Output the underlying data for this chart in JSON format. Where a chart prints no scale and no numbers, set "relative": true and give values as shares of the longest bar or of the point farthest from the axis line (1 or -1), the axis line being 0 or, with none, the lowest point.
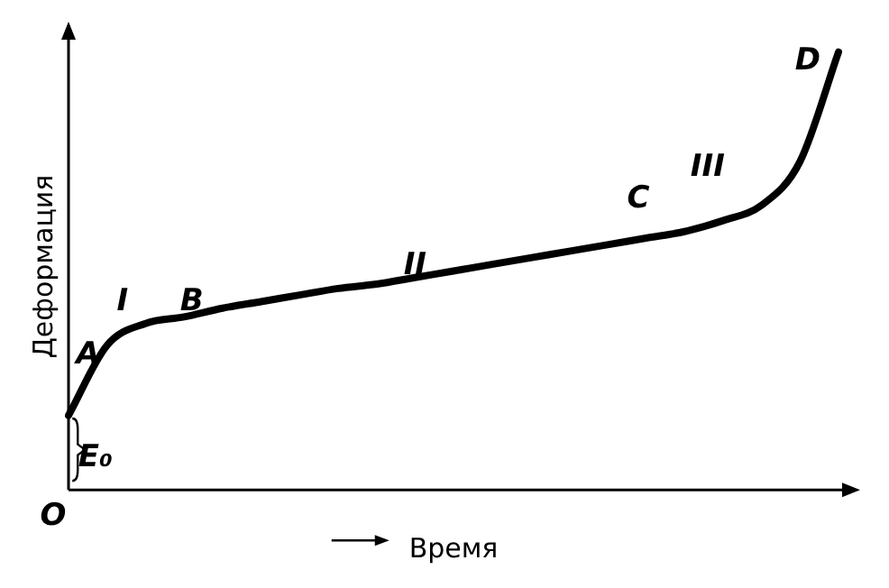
{
  "chart_data": {
    "type": "line",
    "relative": true,
    "xlabel": "Время",
    "ylabel": "Деформация",
    "categories": [
      null,
      null,
      null,
      null,
      null,
      null,
      null,
      null,
      null,
      null,
      null,
      null,
      null,
      null,
      null,
      null,
      null,
      null,
      null,
      null,
      null
    ],
    "series": [
      {
        "color": "#000000",
        "values": [
          0.17,
          0.33,
          0.38,
          0.395,
          0.415,
          0.43,
          0.445,
          0.46,
          0.47,
          0.485,
          0.5,
          0.515,
          0.53,
          0.545,
          0.56,
          0.575,
          0.59,
          0.615,
          0.65,
          0.75,
          1.0
        ]
      }
    ],
    "annotations": [
      "A",
      "I",
      "B",
      "II",
      "C",
      "III",
      "D",
      "E₀",
      "O"
    ],
    "grid": false,
    "legend": false,
    "marker": "none",
    "line_style": "solid"
  }
}
